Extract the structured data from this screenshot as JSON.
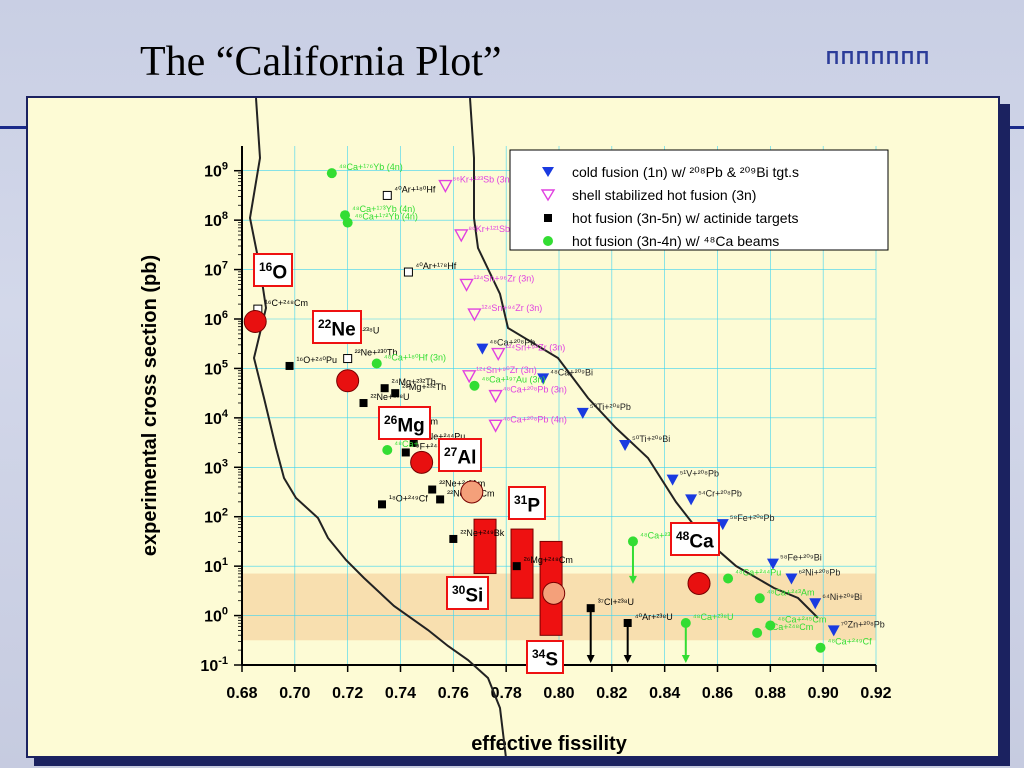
{
  "slide": {
    "title": "The “California Plot”"
  },
  "logo": {
    "text": "ΠΠΠΠΠΠΠ",
    "icon": "castle-logo-icon"
  },
  "colors": {
    "panel_bg": "#fdfbd5",
    "band": "#f7d9a8",
    "cold": "#1a3ae0",
    "shell": "#e040e0",
    "hot_act": "#000000",
    "hot_ca": "#33dd33",
    "nucleus_circle": "#e81010",
    "light_circle": "#f4a07a",
    "bar": "#ee1111",
    "grid": "#3fd4f0"
  },
  "chart_data": {
    "type": "scatter",
    "xlabel": "effective fissility",
    "ylabel": "experimental cross section (pb)",
    "xlim": [
      0.67,
      0.92
    ],
    "ylim_log10": [
      -1,
      9.5
    ],
    "x_ticks": [
      "0.68",
      "0.70",
      "0.72",
      "0.74",
      "0.76",
      "0.78",
      "0.80",
      "0.82",
      "0.84",
      "0.86",
      "0.88",
      "0.90",
      "0.92"
    ],
    "y_ticks": [
      {
        "base": "10",
        "exp": "9"
      },
      {
        "base": "10",
        "exp": "8"
      },
      {
        "base": "10",
        "exp": "7"
      },
      {
        "base": "10",
        "exp": "6"
      },
      {
        "base": "10",
        "exp": "5"
      },
      {
        "base": "10",
        "exp": "4"
      },
      {
        "base": "10",
        "exp": "3"
      },
      {
        "base": "10",
        "exp": "2"
      },
      {
        "base": "10",
        "exp": "1"
      },
      {
        "base": "10",
        "exp": "0"
      },
      {
        "base": "10",
        "exp": "-1"
      }
    ],
    "band_log10": [
      -0.5,
      0.85
    ],
    "legend": [
      {
        "series": "cold",
        "text": "cold fusion (1n) w/ ²⁰⁸Pb & ²⁰⁹Bi tgt.s"
      },
      {
        "series": "shell",
        "text": "shell stabilized hot fusion (3n)"
      },
      {
        "series": "hot_act",
        "text": "hot fusion (3n-5n) w/ actinide targets"
      },
      {
        "series": "hot_ca",
        "text": "hot fusion (3n-4n) w/ ⁴⁸Ca beams"
      }
    ],
    "series": [
      {
        "name": "cold fusion (1n) w/ 208Pb & 209Bi tgt.s",
        "key": "cold",
        "points": [
          [
            0.771,
            5.4,
            "⁴⁸Ca+²⁰⁸Pb"
          ],
          [
            0.794,
            4.8,
            "⁴⁸Ca+²⁰⁹Bi"
          ],
          [
            0.809,
            4.1,
            "⁵⁰Ti+²⁰⁸Pb"
          ],
          [
            0.825,
            3.45,
            "⁵⁰Ti+²⁰⁹Bi"
          ],
          [
            0.843,
            2.75,
            "⁵¹V+²⁰⁸Pb"
          ],
          [
            0.85,
            2.35,
            "⁵⁴Cr+²⁰⁸Pb"
          ],
          [
            0.862,
            1.85,
            "⁵⁸Fe+²⁰⁸Pb"
          ],
          [
            0.881,
            1.05,
            "⁵⁸Fe+²⁰⁹Bi"
          ],
          [
            0.888,
            0.75,
            "⁶²Ni+²⁰⁸Pb"
          ],
          [
            0.897,
            0.25,
            "⁶⁴Ni+²⁰⁹Bi"
          ],
          [
            0.904,
            -0.3,
            "⁷⁰Zn+²⁰⁸Pb"
          ]
        ]
      },
      {
        "name": "shell stabilized hot fusion (3n)",
        "key": "shell",
        "points": [
          [
            0.757,
            8.7,
            "⁸⁶Kr+¹²³Sb (3n)"
          ],
          [
            0.763,
            7.7,
            "⁸⁶Kr+¹²¹Sb (3n)"
          ],
          [
            0.765,
            6.7,
            "¹²⁴Sn+⁹⁶Zr (3n)"
          ],
          [
            0.768,
            6.1,
            "¹²⁴Sn+⁹⁴Zr (3n)"
          ],
          [
            0.777,
            5.3,
            "¹²⁴Sn+⁹²Zr (3n)"
          ],
          [
            0.766,
            4.85,
            "¹²⁴Sn+⁹⁰Zr (3n)"
          ],
          [
            0.776,
            4.45,
            "⁴⁸Ca+²⁰⁸Pb (3n)"
          ],
          [
            0.776,
            3.85,
            "⁴⁸Ca+²⁰⁸Pb (4n)"
          ]
        ]
      },
      {
        "name": "hot fusion (3n-5n) w/ actinide targets",
        "key": "hot_act",
        "points": [
          [
            0.698,
            5.05,
            "¹⁶O+²⁴⁰Pu"
          ],
          [
            0.716,
            5.65,
            "¹⁶O+²³⁸U"
          ],
          [
            0.72,
            5.2,
            "²²Ne+²³⁰Th"
          ],
          [
            0.726,
            4.3,
            "²²Ne+²³⁸U"
          ],
          [
            0.734,
            4.6,
            "²⁴Mg+²³²Th"
          ],
          [
            0.738,
            4.5,
            "²⁶Mg+²³²Th"
          ],
          [
            0.735,
            3.8,
            "¹⁸O+²⁴⁸Cm"
          ],
          [
            0.74,
            3.8,
            "²⁴⁹Bk"
          ],
          [
            0.742,
            3.3,
            "¹⁹F+²⁴⁸Cm"
          ],
          [
            0.745,
            3.5,
            "²²Ne+²⁴⁴Pu"
          ],
          [
            0.733,
            2.25,
            "¹⁸O+²⁴⁹Cf"
          ],
          [
            0.752,
            2.55,
            "²²Ne+²⁴³Am"
          ],
          [
            0.755,
            2.35,
            "²²Ne+²⁴⁸Cm"
          ],
          [
            0.76,
            1.55,
            "²²Ne+²⁴⁹Bk"
          ],
          [
            0.784,
            1.0,
            "²⁶Mg+²⁴⁸Cm"
          ],
          [
            0.812,
            0.15,
            "³⁷Cl+²³⁸U"
          ],
          [
            0.826,
            -0.15,
            "⁴⁰Ar+²³⁸U"
          ]
        ]
      },
      {
        "name": "hot fusion (3n-4n) w/ 48Ca beams",
        "key": "hot_ca",
        "points": [
          [
            0.714,
            8.95,
            "⁴⁸Ca+¹⁷⁶Yb (4n)"
          ],
          [
            0.719,
            8.1,
            "⁴⁸Ca+¹⁷³Yb (4n)"
          ],
          [
            0.72,
            7.95,
            "⁴⁸Ca+¹⁷²Yb (4n)"
          ],
          [
            0.731,
            5.1,
            "⁴⁸Ca+¹⁸⁰Hf (3n)"
          ],
          [
            0.768,
            4.65,
            "⁴⁸Ca+¹⁹⁷Au (3n)"
          ],
          [
            0.735,
            3.35,
            "⁴⁸Ca+"
          ],
          [
            0.828,
            1.5,
            "⁴⁸Ca+²³⁸U"
          ],
          [
            0.864,
            0.75,
            "⁴⁸Ca+²⁴⁴Pu"
          ],
          [
            0.848,
            -0.15,
            "⁴⁸Ca+²³⁸U"
          ],
          [
            0.876,
            0.35,
            "⁴⁸Ca+²⁴³Am"
          ],
          [
            0.88,
            -0.2,
            "⁴⁸Ca+²⁴⁵Cm"
          ],
          [
            0.875,
            -0.35,
            "⁴⁸Ca+²⁴⁸Cm"
          ],
          [
            0.899,
            -0.65,
            "⁴⁸Ca+²⁴⁹Cf"
          ]
        ]
      },
      {
        "name": "open squares",
        "key": "open",
        "points": [
          [
            0.735,
            8.5,
            "⁴⁰Ar+¹⁸⁰Hf"
          ],
          [
            0.743,
            6.95,
            "⁴⁰Ar+¹⁷⁸Hf"
          ],
          [
            0.686,
            6.2,
            "¹⁶C+²⁴⁸Cm"
          ],
          [
            0.72,
            5.2,
            ""
          ]
        ]
      }
    ],
    "text_labels": [
      [
        0.68,
        6.2,
        "⁶C+²⁴⁸Cm"
      ],
      [
        0.735,
        4.4,
        "²²Ne+²³⁸U"
      ],
      [
        0.72,
        5.2,
        "Ne+²³⁰U"
      ],
      [
        0.825,
        3.9,
        "⁵⁰Ti+²⁰⁹Bi"
      ],
      [
        0.784,
        1.0,
        "Mg+"
      ]
    ],
    "nuclei": [
      {
        "x": 0.685,
        "y": 5.95,
        "label": "O",
        "mass": "16",
        "kind": "red"
      },
      {
        "x": 0.72,
        "y": 4.75,
        "label": "Ne",
        "mass": "22",
        "kind": "red"
      },
      {
        "x": 0.748,
        "y": 3.1,
        "label": "Mg",
        "mass": "26",
        "kind": "red"
      },
      {
        "x": 0.767,
        "y": 2.5,
        "label": "Al",
        "mass": "27",
        "kind": "light"
      },
      {
        "x": 0.798,
        "y": 0.45,
        "label": "P",
        "mass": "31",
        "kind": "light"
      },
      {
        "x": 0.853,
        "y": 0.65,
        "label": "Ca",
        "mass": "48",
        "kind": "red"
      }
    ],
    "nucleus_boxes": [
      {
        "mass": "16",
        "sym": "O"
      },
      {
        "mass": "22",
        "sym": "Ne"
      },
      {
        "mass": "26",
        "sym": "Mg"
      },
      {
        "mass": "27",
        "sym": "Al"
      },
      {
        "mass": "31",
        "sym": "P"
      },
      {
        "mass": "48",
        "sym": "Ca"
      },
      {
        "mass": "30",
        "sym": "Si"
      },
      {
        "mass": "34",
        "sym": "S"
      }
    ],
    "bars": [
      {
        "x": 0.772,
        "low": 0.85,
        "high": 1.95
      },
      {
        "x": 0.786,
        "low": 0.35,
        "high": 1.75
      },
      {
        "x": 0.797,
        "low": -0.4,
        "high": 1.5
      }
    ],
    "limits": [
      {
        "x": 0.812,
        "from": 0.15,
        "to": -1,
        "color": "hot_act"
      },
      {
        "x": 0.826,
        "from": -0.15,
        "to": -1,
        "color": "hot_act"
      },
      {
        "x": 0.828,
        "from": 1.5,
        "to": 0.6,
        "color": "hot_ca"
      },
      {
        "x": 0.848,
        "from": -0.15,
        "to": -1,
        "color": "hot_ca"
      }
    ]
  }
}
